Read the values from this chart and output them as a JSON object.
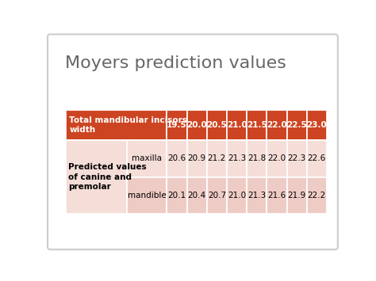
{
  "title": "Moyers prediction values",
  "title_fontsize": 16,
  "title_color": "#666666",
  "background_color": "#ffffff",
  "header_bg": "#cc4422",
  "header_text_color": "#ffffff",
  "row1_bg": "#f5ddd8",
  "row2_bg": "#eeccc5",
  "col_labels": [
    "19.5",
    "20.0",
    "20.5",
    "21.0",
    "21.5",
    "22.0",
    "22.5",
    "23.0"
  ],
  "row_header_label": "Total mandibular incisors\nwidth",
  "row1_label1": "Predicted values\nof canine and\npremolar",
  "row1_label2": "maxilla",
  "row1_values": [
    "20.6",
    "20.9",
    "21.2",
    "21.3",
    "21.8",
    "22.0",
    "22.3",
    "22.6"
  ],
  "row2_label2": "mandible",
  "row2_values": [
    "20.1",
    "20.4",
    "20.7",
    "21.0",
    "21.3",
    "21.6",
    "21.9",
    "22.2"
  ]
}
